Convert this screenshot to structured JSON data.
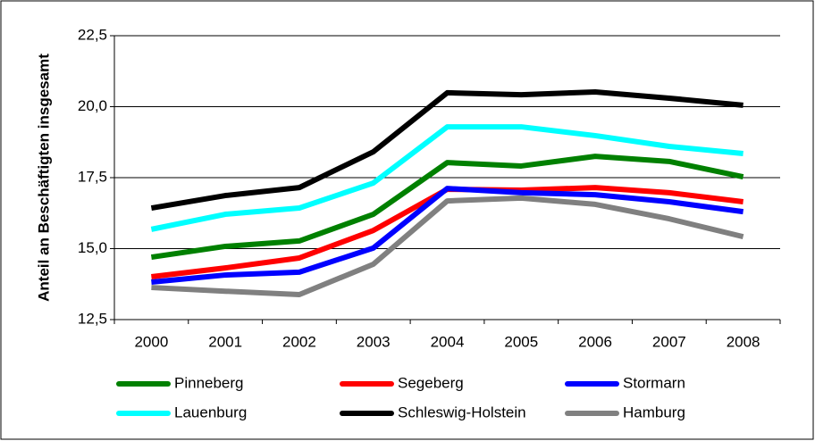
{
  "chart_data": {
    "type": "line",
    "y_axis_label": "Anteil an Beschäftigten insgesamt",
    "categories": [
      "2000",
      "2001",
      "2002",
      "2003",
      "2004",
      "2005",
      "2006",
      "2007",
      "2008"
    ],
    "ylim": [
      12.5,
      22.5
    ],
    "yticks": [
      {
        "value": 12.5,
        "label": "12,5"
      },
      {
        "value": 15.0,
        "label": "15,0"
      },
      {
        "value": 17.5,
        "label": "17,5"
      },
      {
        "value": 20.0,
        "label": "20,0"
      },
      {
        "value": 22.5,
        "label": "22,5"
      }
    ],
    "grid": true,
    "legend": "bottom",
    "series": [
      {
        "name": "Pinneberg",
        "color": "#008000",
        "values": [
          14.7,
          15.08,
          15.27,
          16.21,
          18.03,
          17.91,
          18.25,
          18.07,
          17.53
        ]
      },
      {
        "name": "Segeberg",
        "color": "#ff0000",
        "values": [
          14.01,
          14.32,
          14.67,
          15.64,
          17.09,
          17.06,
          17.15,
          16.97,
          16.65
        ]
      },
      {
        "name": "Stormarn",
        "color": "#0000ff",
        "values": [
          13.82,
          14.07,
          14.17,
          15.02,
          17.12,
          16.97,
          16.9,
          16.65,
          16.3
        ]
      },
      {
        "name": "Lauenburg",
        "color": "#00ffff",
        "values": [
          15.68,
          16.21,
          16.43,
          17.31,
          19.29,
          19.29,
          18.98,
          18.6,
          18.35
        ]
      },
      {
        "name": "Schleswig-Holstein",
        "color": "#000000",
        "values": [
          16.43,
          16.87,
          17.15,
          18.41,
          20.49,
          20.42,
          20.52,
          20.3,
          20.05
        ]
      },
      {
        "name": "Hamburg",
        "color": "#808080",
        "values": [
          13.63,
          13.5,
          13.38,
          14.45,
          16.68,
          16.78,
          16.56,
          16.05,
          15.42
        ]
      }
    ]
  }
}
